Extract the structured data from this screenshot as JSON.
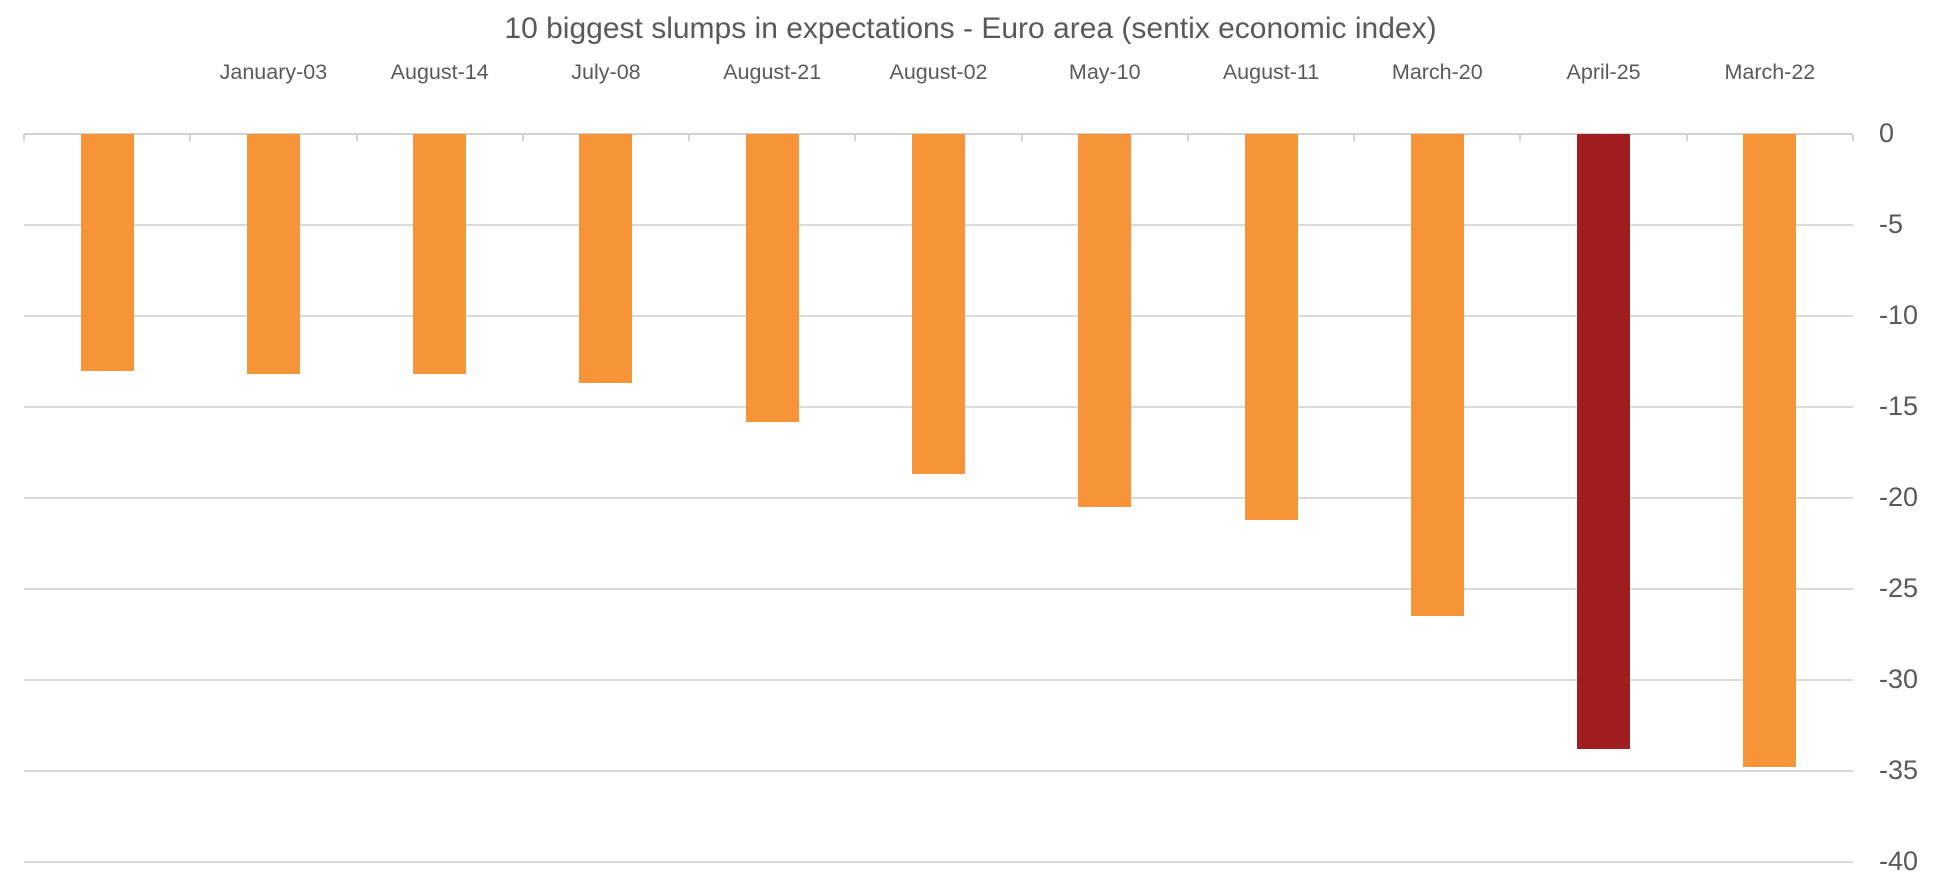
{
  "page": {
    "background": "#FFFFFF"
  },
  "chart_data": {
    "type": "bar",
    "orientation": "vertical-negative",
    "title": "10 biggest slumps in expectations - Euro area (sentix economic index)",
    "categories": [
      "",
      "January-03",
      "August-14",
      "July-08",
      "August-21",
      "August-02",
      "May-10",
      "August-11",
      "March-20",
      "April-25",
      "March-22"
    ],
    "values": [
      -13.0,
      -13.2,
      -13.2,
      -13.7,
      -15.8,
      -18.7,
      -20.5,
      -21.2,
      -26.5,
      -33.8,
      -34.8
    ],
    "highlight_index": 9,
    "y_ticks": [
      0,
      -5,
      -10,
      -15,
      -20,
      -25,
      -30,
      -35,
      -40
    ],
    "ylim": [
      -40,
      0
    ],
    "grid": true,
    "y_axis_position": "right",
    "category_label_position": "top",
    "legend": "none",
    "xlabel": "",
    "ylabel": "",
    "colors": {
      "bar": "#F89438",
      "highlight": "#A01D20",
      "grid": "#DADADA",
      "axis": "#D2D2D2",
      "text": "#595959"
    }
  }
}
